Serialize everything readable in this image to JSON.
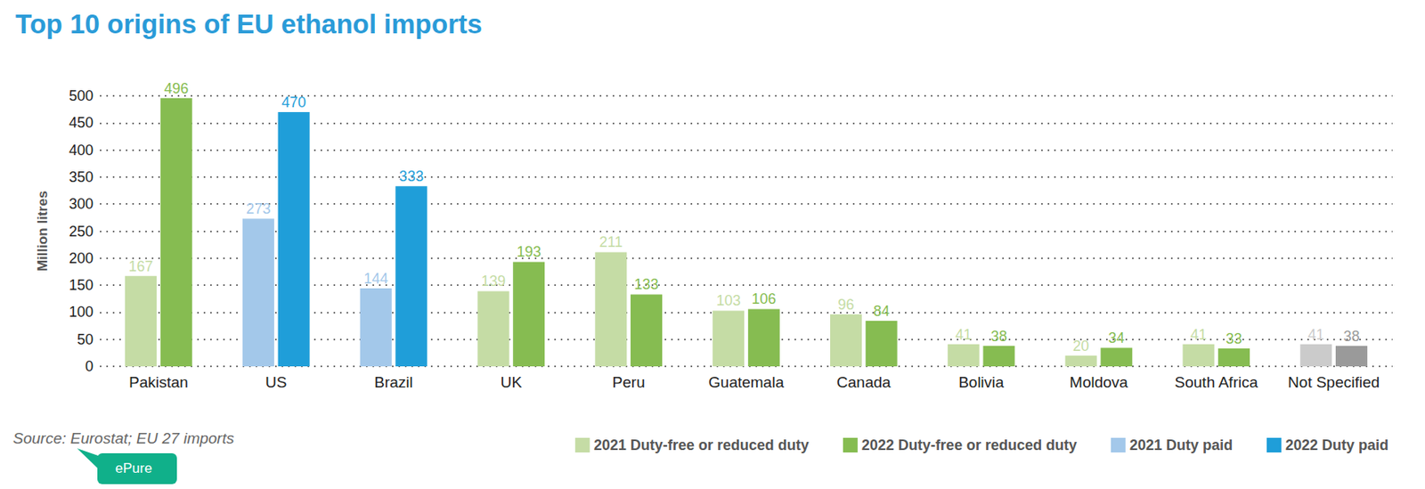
{
  "chart_data": {
    "type": "bar",
    "title": "Top 10 origins of EU ethanol imports",
    "y_label": "Million litres",
    "annotations": [
      "Source: Eurostat; EU 27 imports",
      "ePure"
    ],
    "categories": [
      "Pakistan",
      "US",
      "Brazil",
      "UK",
      "Peru",
      "Guatemala",
      "Canada",
      "Bolivia",
      "Moldova",
      "South Africa",
      "Not Specified"
    ],
    "series": [
      {
        "name": "2021 Duty-free or reduced duty",
        "color": "#c5dca5",
        "colors": [
          "#c5dca5",
          "#c5dca5",
          "#c5dca5",
          "#c5dca5",
          "#c5dca5",
          "#c5dca5",
          "#c5dca5",
          "#c5dca5",
          "#c5dca5",
          "#c5dca5",
          "#cbcbcb"
        ],
        "values": [
          167,
          null,
          null,
          139,
          211,
          103,
          96,
          41,
          20,
          41,
          41
        ]
      },
      {
        "name": "2022 Duty-free or reduced duty",
        "color": "#86bc51",
        "colors": [
          "#86bc51",
          "#86bc51",
          "#86bc51",
          "#86bc51",
          "#86bc51",
          "#86bc51",
          "#86bc51",
          "#86bc51",
          "#86bc51",
          "#86bc51",
          "#9a9a9a"
        ],
        "values": [
          496,
          null,
          null,
          193,
          133,
          106,
          84,
          38,
          34,
          33,
          38
        ]
      },
      {
        "name": "2021 Duty paid",
        "color": "#a3c8ea",
        "values": [
          null,
          273,
          144,
          null,
          null,
          null,
          null,
          null,
          null,
          null,
          null
        ]
      },
      {
        "name": "2022 Duty paid",
        "color": "#1f9ed9",
        "values": [
          null,
          470,
          333,
          null,
          null,
          null,
          null,
          null,
          null,
          null,
          null
        ]
      }
    ],
    "ylim": [
      0,
      500
    ],
    "yticks": [
      0,
      50,
      100,
      150,
      200,
      250,
      300,
      350,
      400,
      450,
      500
    ],
    "grid": true,
    "legend": "bottom-right",
    "data_labels": true
  }
}
